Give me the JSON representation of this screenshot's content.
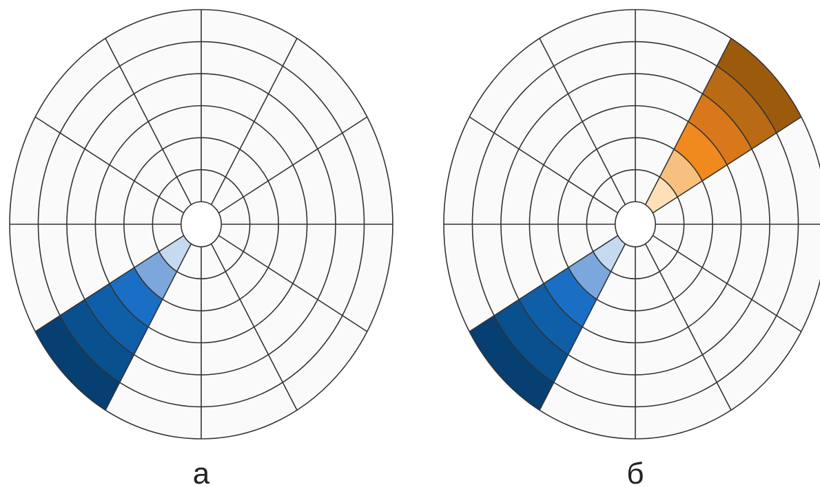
{
  "diagrams": [
    {
      "caption": "а",
      "rings": 6,
      "spokes": 12,
      "grid_color": "#333333",
      "background_color": "#fafafa",
      "highlighted_sectors": [
        {
          "name": "blue-sector",
          "direction": "lower-left",
          "ring_colors": [
            "#c5d9f1",
            "#7ba7dc",
            "#1a6fc4",
            "#0e5fa8",
            "#09508f",
            "#063f72"
          ]
        }
      ]
    },
    {
      "caption": "б",
      "rings": 6,
      "spokes": 12,
      "grid_color": "#333333",
      "background_color": "#fafafa",
      "highlighted_sectors": [
        {
          "name": "blue-sector",
          "direction": "lower-left",
          "ring_colors": [
            "#c5d9f1",
            "#7ba7dc",
            "#1a6fc4",
            "#0e5fa8",
            "#09508f",
            "#063f72"
          ]
        },
        {
          "name": "orange-sector",
          "direction": "upper-right",
          "ring_colors": [
            "#fde0b8",
            "#f8c07e",
            "#f08a1e",
            "#d9781a",
            "#b86b14",
            "#9c5a0d"
          ]
        }
      ]
    }
  ]
}
